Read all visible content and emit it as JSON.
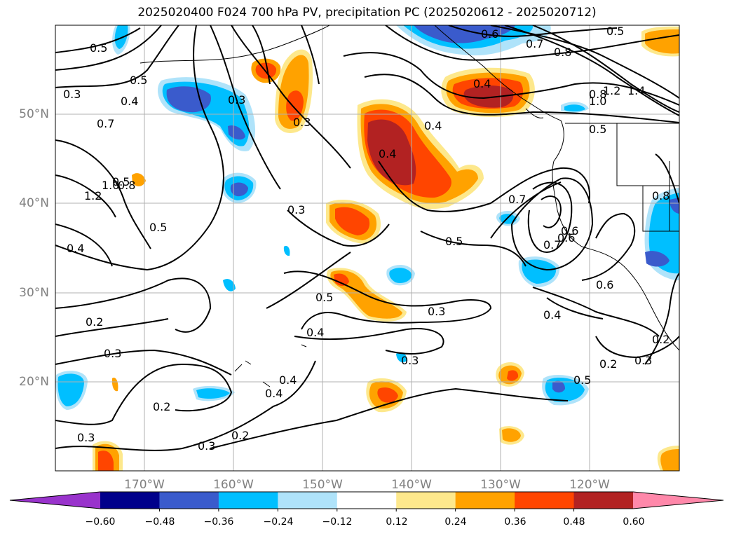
{
  "title": "2025020400 F024 700 hPa PV, precipitation PC (2025020612 - 2025020712)",
  "lat_labels": [
    "50°N",
    "40°N",
    "30°N",
    "20°N"
  ],
  "lon_labels": [
    "170°W",
    "160°W",
    "150°W",
    "140°W",
    "130°W",
    "120°W"
  ],
  "colorbar": {
    "ticks": [
      "−0.60",
      "−0.48",
      "−0.36",
      "−0.24",
      "−0.12",
      "0.12",
      "0.24",
      "0.36",
      "0.48",
      "0.60"
    ],
    "colors": [
      "#9933cc",
      "#00008b",
      "#3a5bcc",
      "#00bfff",
      "#afe3fa",
      "#ffffff",
      "#fde88c",
      "#ffa200",
      "#ff4500",
      "#b22222",
      "#ff88aa"
    ]
  },
  "contour_labels": [
    "0.5",
    "0.6",
    "0.7",
    "0.8",
    "0.7",
    "1.2",
    "1.0",
    "0.8",
    "0.5",
    "0.4",
    "0.2",
    "0.3",
    "0.3",
    "0.2",
    "0.3",
    "0.3",
    "0.4",
    "0.5",
    "0.4",
    "0.3",
    "0.5",
    "0.4",
    "0.4",
    "0.3",
    "0.2",
    "0.4",
    "0.3",
    "0.2",
    "0.5",
    "0.6",
    "0.7",
    "0.8",
    "1.0",
    "1.2",
    "1.4",
    "0.5",
    "0.5",
    "0.7",
    "0.6",
    "0.4",
    "0.3",
    "0.2",
    "0.3",
    "0.4",
    "0.8",
    "0.5",
    "0.4",
    "0.3",
    "0.6",
    "0.5"
  ]
}
